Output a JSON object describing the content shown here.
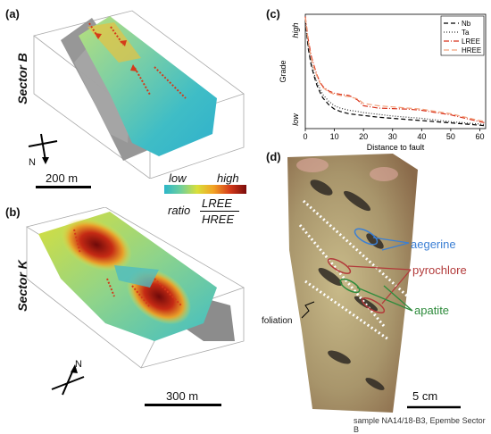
{
  "panels": {
    "a": {
      "label": "(a)",
      "sector": "Sector B",
      "scale": "200 m",
      "north": "N"
    },
    "b": {
      "label": "(b)",
      "sector": "Sector K",
      "scale": "300 m",
      "north": "N"
    },
    "colorbar": {
      "low": "low",
      "high": "high",
      "ratio": "ratio",
      "numerator": "LREE",
      "denominator": "HREE",
      "colors": [
        "#2ab6c9",
        "#6fcf9c",
        "#d9df3a",
        "#f2a224",
        "#d43a1a",
        "#7a0b0b"
      ]
    },
    "c": {
      "label": "(c)"
    },
    "d": {
      "label": "(d)",
      "annotations": {
        "aegerine": "aegerine",
        "pyrochlore": "pyrochlore",
        "apatite": "apatite",
        "foliation": "foliation"
      },
      "scale": "5 cm",
      "caption": "sample NA14/18-B3, Epembe Sector B",
      "colors": {
        "aegerine": "#3b7fd4",
        "pyrochlore": "#b23a3a",
        "apatite": "#2e8b3c"
      }
    }
  },
  "chart_data": {
    "type": "line",
    "xlabel": "Distance to fault",
    "ylabel": "Grade",
    "ytick_labels": [
      "high",
      "low"
    ],
    "xlim": [
      0,
      62
    ],
    "ylim": [
      0,
      1
    ],
    "xticks": [
      0,
      10,
      20,
      30,
      40,
      50,
      60
    ],
    "legend_position": "top-right",
    "series": [
      {
        "name": "Nb",
        "color": "#000000",
        "dash": "5,3",
        "x": [
          0,
          1,
          2,
          3,
          4,
          5,
          6,
          8,
          10,
          12,
          15,
          18,
          20,
          25,
          30,
          35,
          40,
          45,
          50,
          55,
          60,
          62
        ],
        "y": [
          0.95,
          0.7,
          0.56,
          0.46,
          0.38,
          0.32,
          0.27,
          0.21,
          0.17,
          0.15,
          0.13,
          0.12,
          0.115,
          0.1,
          0.09,
          0.08,
          0.07,
          0.06,
          0.05,
          0.04,
          0.03,
          0.025
        ]
      },
      {
        "name": "Ta",
        "color": "#333333",
        "dash": "1,2",
        "x": [
          0,
          1,
          2,
          3,
          4,
          5,
          6,
          8,
          10,
          12,
          15,
          18,
          20,
          25,
          30,
          35,
          40,
          45,
          50,
          55,
          60,
          62
        ],
        "y": [
          0.93,
          0.72,
          0.58,
          0.48,
          0.41,
          0.35,
          0.3,
          0.24,
          0.2,
          0.18,
          0.16,
          0.15,
          0.14,
          0.125,
          0.11,
          0.1,
          0.09,
          0.075,
          0.06,
          0.05,
          0.04,
          0.035
        ]
      },
      {
        "name": "LREE",
        "color": "#d8301a",
        "dash": "6,2,1,2",
        "x": [
          0,
          1,
          2,
          3,
          4,
          5,
          6,
          8,
          10,
          12,
          15,
          18,
          20,
          25,
          30,
          35,
          40,
          45,
          50,
          55,
          60,
          62
        ],
        "y": [
          0.98,
          0.78,
          0.64,
          0.55,
          0.47,
          0.41,
          0.37,
          0.33,
          0.31,
          0.3,
          0.29,
          0.25,
          0.2,
          0.18,
          0.175,
          0.17,
          0.16,
          0.14,
          0.12,
          0.09,
          0.06,
          0.05
        ]
      },
      {
        "name": "HREE",
        "color": "#f2a07a",
        "dash": "6,3",
        "x": [
          0,
          1,
          2,
          3,
          4,
          5,
          6,
          8,
          10,
          12,
          15,
          18,
          20,
          25,
          30,
          35,
          40,
          45,
          50,
          55,
          60,
          62
        ],
        "y": [
          0.97,
          0.76,
          0.62,
          0.53,
          0.46,
          0.4,
          0.36,
          0.32,
          0.3,
          0.29,
          0.28,
          0.26,
          0.22,
          0.2,
          0.19,
          0.18,
          0.17,
          0.15,
          0.13,
          0.1,
          0.07,
          0.06
        ]
      }
    ]
  }
}
